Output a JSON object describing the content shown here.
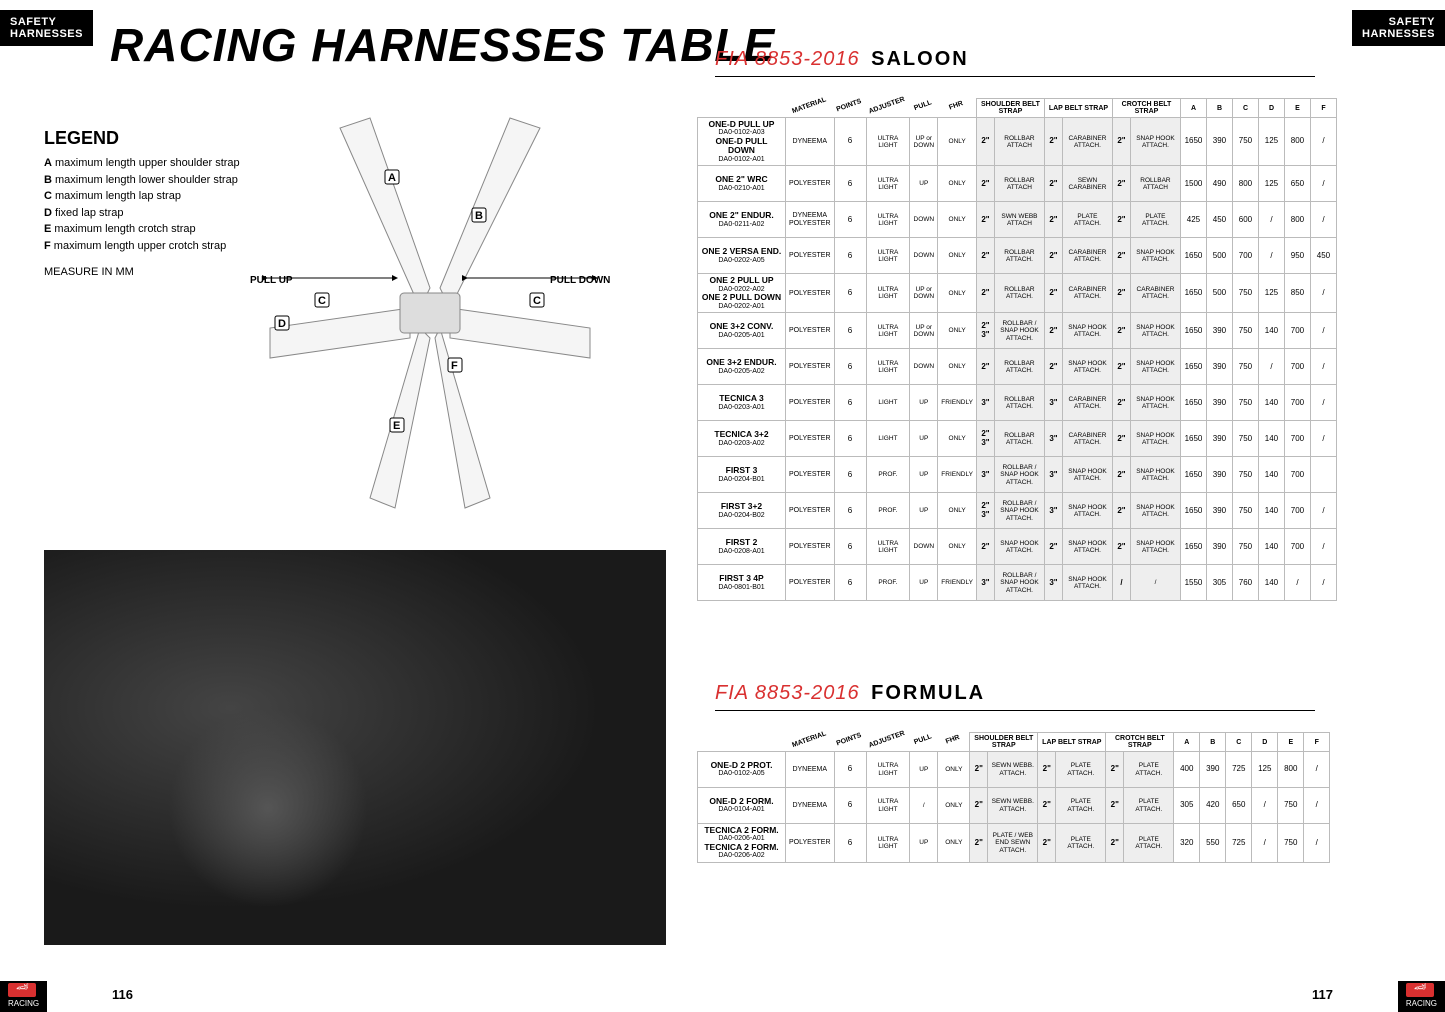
{
  "tabs": {
    "label1": "SAFETY",
    "label2": "HARNESSES"
  },
  "title": "RACING HARNESSES TABLE",
  "legend": {
    "heading": "LEGEND",
    "items": [
      {
        "key": "A",
        "text": "maximum length upper shoulder strap"
      },
      {
        "key": "B",
        "text": "maximum length lower shoulder strap"
      },
      {
        "key": "C",
        "text": "maximum length lap strap"
      },
      {
        "key": "D",
        "text": "fixed lap strap"
      },
      {
        "key": "E",
        "text": "maximum length crotch strap"
      },
      {
        "key": "F",
        "text": "maximum length upper crotch strap"
      }
    ],
    "measure": "MEASURE IN MM"
  },
  "diagram": {
    "labels": {
      "A": "A",
      "B": "B",
      "C": "C",
      "D": "D",
      "E": "E",
      "F": "F"
    },
    "pullup": "PULL UP",
    "pulldown": "PULL DOWN"
  },
  "sections": {
    "saloon": {
      "fia": "FIA 8853-2016",
      "cat": "SALOON"
    },
    "formula": {
      "fia": "FIA 8853-2016",
      "cat": "FORMULA"
    }
  },
  "headers": {
    "material": "MATERIAL",
    "points": "POINTS",
    "adjuster": "ADJUSTER",
    "pull": "PULL",
    "fhr": "FHR",
    "shoulder": "SHOULDER BELT STRAP",
    "lap": "LAP BELT STRAP",
    "crotch": "CROTCH BELT STRAP",
    "a": "A",
    "b": "B",
    "c": "C",
    "d": "D",
    "e": "E",
    "f": "F"
  },
  "saloon_rows": [
    {
      "name": "ONE-D PULL UP",
      "code": "DA0-0102-A03",
      "name2": "ONE-D PULL DOWN",
      "code2": "DA0-0102-A01",
      "mat": "DYNEEMA",
      "pts": "6",
      "adj": "ULTRA LIGHT",
      "pull": "UP or DOWN",
      "fhr": "ONLY",
      "s1": "2\"",
      "s2": "ROLLBAR ATTACH",
      "l1": "2\"",
      "l2": "CARABINER ATTACH.",
      "c1": "2\"",
      "c2": "SNAP HOOK ATTACH.",
      "a": "1650",
      "b": "390",
      "c": "750",
      "d": "125",
      "e": "800",
      "f": "/"
    },
    {
      "name": "ONE 2\" WRC",
      "code": "DA0-0210-A01",
      "mat": "POLYESTER",
      "pts": "6",
      "adj": "ULTRA LIGHT",
      "pull": "UP",
      "fhr": "ONLY",
      "s1": "2\"",
      "s2": "ROLLBAR ATTACH",
      "l1": "2\"",
      "l2": "SEWN CARABINER",
      "c1": "2\"",
      "c2": "ROLLBAR ATTACH",
      "a": "1500",
      "b": "490",
      "c": "800",
      "d": "125",
      "e": "650",
      "f": "/"
    },
    {
      "name": "ONE 2\" ENDUR.",
      "code": "DA0-0211-A02",
      "mat": "DYNEEMA POLYESTER",
      "pts": "6",
      "adj": "ULTRA LIGHT",
      "pull": "DOWN",
      "fhr": "ONLY",
      "s1": "2\"",
      "s2": "SWN WEBB ATTACH",
      "l1": "2\"",
      "l2": "PLATE ATTACH.",
      "c1": "2\"",
      "c2": "PLATE ATTACH.",
      "a": "425",
      "b": "450",
      "c": "600",
      "d": "/",
      "e": "800",
      "f": "/"
    },
    {
      "name": "ONE 2 VERSA END.",
      "code": "DA0-0202-A05",
      "mat": "POLYESTER",
      "pts": "6",
      "adj": "ULTRA LIGHT",
      "pull": "DOWN",
      "fhr": "ONLY",
      "s1": "2\"",
      "s2": "ROLLBAR ATTACH.",
      "l1": "2\"",
      "l2": "CARABINER ATTACH.",
      "c1": "2\"",
      "c2": "SNAP HOOK ATTACH.",
      "a": "1650",
      "b": "500",
      "c": "700",
      "d": "/",
      "e": "950",
      "f": "450"
    },
    {
      "name": "ONE 2 PULL UP",
      "code": "DA0-0202-A02",
      "name2": "ONE 2 PULL DOWN",
      "code2": "DA0-0202-A01",
      "mat": "POLYESTER",
      "pts": "6",
      "adj": "ULTRA LIGHT",
      "pull": "UP or DOWN",
      "fhr": "ONLY",
      "s1": "2\"",
      "s2": "ROLLBAR ATTACH.",
      "l1": "2\"",
      "l2": "CARABINER ATTACH.",
      "c1": "2\"",
      "c2": "CARABINER ATTACH.",
      "a": "1650",
      "b": "500",
      "c": "750",
      "d": "125",
      "e": "850",
      "f": "/"
    },
    {
      "name": "ONE 3+2 CONV.",
      "code": "DA0-0205-A01",
      "mat": "POLYESTER",
      "pts": "6",
      "adj": "ULTRA LIGHT",
      "pull": "UP or DOWN",
      "fhr": "ONLY",
      "s1": "2\" 3\"",
      "s2": "ROLLBAR / SNAP HOOK ATTACH.",
      "l1": "2\"",
      "l2": "SNAP HOOK ATTACH.",
      "c1": "2\"",
      "c2": "SNAP HOOK ATTACH.",
      "a": "1650",
      "b": "390",
      "c": "750",
      "d": "140",
      "e": "700",
      "f": "/"
    },
    {
      "name": "ONE 3+2 ENDUR.",
      "code": "DA0-0205-A02",
      "mat": "POLYESTER",
      "pts": "6",
      "adj": "ULTRA LIGHT",
      "pull": "DOWN",
      "fhr": "ONLY",
      "s1": "2\"",
      "s2": "ROLLBAR ATTACH.",
      "l1": "2\"",
      "l2": "SNAP HOOK ATTACH.",
      "c1": "2\"",
      "c2": "SNAP HOOK ATTACH.",
      "a": "1650",
      "b": "390",
      "c": "750",
      "d": "/",
      "e": "700",
      "f": "/"
    },
    {
      "name": "TECNICA 3",
      "code": "DA0-0203-A01",
      "mat": "POLYESTER",
      "pts": "6",
      "adj": "LIGHT",
      "pull": "UP",
      "fhr": "FRIENDLY",
      "s1": "3\"",
      "s2": "ROLLBAR ATTACH.",
      "l1": "3\"",
      "l2": "CARABINER ATTACH.",
      "c1": "2\"",
      "c2": "SNAP HOOK ATTACH.",
      "a": "1650",
      "b": "390",
      "c": "750",
      "d": "140",
      "e": "700",
      "f": "/"
    },
    {
      "name": "TECNICA 3+2",
      "code": "DA0-0203-A02",
      "mat": "POLYESTER",
      "pts": "6",
      "adj": "LIGHT",
      "pull": "UP",
      "fhr": "ONLY",
      "s1": "2\" 3\"",
      "s2": "ROLLBAR ATTACH.",
      "l1": "3\"",
      "l2": "CARABINER ATTACH.",
      "c1": "2\"",
      "c2": "SNAP HOOK ATTACH.",
      "a": "1650",
      "b": "390",
      "c": "750",
      "d": "140",
      "e": "700",
      "f": "/"
    },
    {
      "name": "FIRST 3",
      "code": "DA0-0204-B01",
      "mat": "POLYESTER",
      "pts": "6",
      "adj": "PROF.",
      "pull": "UP",
      "fhr": "FRIENDLY",
      "s1": "3\"",
      "s2": "ROLLBAR / SNAP HOOK ATTACH.",
      "l1": "3\"",
      "l2": "SNAP HOOK ATTACH.",
      "c1": "2\"",
      "c2": "SNAP HOOK ATTACH.",
      "a": "1650",
      "b": "390",
      "c": "750",
      "d": "140",
      "e": "700",
      "f": ""
    },
    {
      "name": "FIRST 3+2",
      "code": "DA0-0204-B02",
      "mat": "POLYESTER",
      "pts": "6",
      "adj": "PROF.",
      "pull": "UP",
      "fhr": "ONLY",
      "s1": "2\" 3\"",
      "s2": "ROLLBAR / SNAP HOOK ATTACH.",
      "l1": "3\"",
      "l2": "SNAP HOOK ATTACH.",
      "c1": "2\"",
      "c2": "SNAP HOOK ATTACH.",
      "a": "1650",
      "b": "390",
      "c": "750",
      "d": "140",
      "e": "700",
      "f": "/"
    },
    {
      "name": "FIRST 2",
      "code": "DA0-0208-A01",
      "mat": "POLYESTER",
      "pts": "6",
      "adj": "ULTRA LIGHT",
      "pull": "DOWN",
      "fhr": "ONLY",
      "s1": "2\"",
      "s2": "SNAP HOOK ATTACH.",
      "l1": "2\"",
      "l2": "SNAP HOOK ATTACH.",
      "c1": "2\"",
      "c2": "SNAP HOOK ATTACH.",
      "a": "1650",
      "b": "390",
      "c": "750",
      "d": "140",
      "e": "700",
      "f": "/"
    },
    {
      "name": "FIRST 3 4P",
      "code": "DA0-0801-B01",
      "mat": "POLYESTER",
      "pts": "6",
      "adj": "PROF.",
      "pull": "UP",
      "fhr": "FRIENDLY",
      "s1": "3\"",
      "s2": "ROLLBAR / SNAP HOOK ATTACH.",
      "l1": "3\"",
      "l2": "SNAP HOOK ATTACH.",
      "c1": "/",
      "c2": "/",
      "a": "1550",
      "b": "305",
      "c": "760",
      "d": "140",
      "e": "/",
      "f": "/"
    }
  ],
  "formula_rows": [
    {
      "name": "ONE-D 2 PROT.",
      "code": "DA0-0102-A05",
      "mat": "DYNEEMA",
      "pts": "6",
      "adj": "ULTRA LIGHT",
      "pull": "UP",
      "fhr": "ONLY",
      "s1": "2\"",
      "s2": "SEWN WEBB. ATTACH.",
      "l1": "2\"",
      "l2": "PLATE ATTACH.",
      "c1": "2\"",
      "c2": "PLATE ATTACH.",
      "a": "400",
      "b": "390",
      "c": "725",
      "d": "125",
      "e": "800",
      "f": "/"
    },
    {
      "name": "ONE-D 2 FORM.",
      "code": "DA0-0104-A01",
      "mat": "DYNEEMA",
      "pts": "6",
      "adj": "ULTRA LIGHT",
      "pull": "/",
      "fhr": "ONLY",
      "s1": "2\"",
      "s2": "SEWN WEBB. ATTACH.",
      "l1": "2\"",
      "l2": "PLATE ATTACH.",
      "c1": "2\"",
      "c2": "PLATE ATTACH.",
      "a": "305",
      "b": "420",
      "c": "650",
      "d": "/",
      "e": "750",
      "f": "/"
    },
    {
      "name": "TECNICA 2 FORM.",
      "code": "DA0-0206-A01",
      "name2": "TECNICA 2 FORM.",
      "code2": "DA0-0206-A02",
      "mat": "POLYESTER",
      "pts": "6",
      "adj": "ULTRA LIGHT",
      "pull": "UP",
      "fhr": "ONLY",
      "s1": "2\"",
      "s2": "PLATE / WEB END SEWN ATTACH.",
      "l1": "2\"",
      "l2": "PLATE ATTACH.",
      "c1": "2\"",
      "c2": "PLATE ATTACH.",
      "a": "320",
      "b": "550",
      "c": "725",
      "d": "/",
      "e": "750",
      "f": "/"
    }
  ],
  "footer": {
    "racing": "RACING",
    "page_left": "116",
    "page_right": "117"
  },
  "colors": {
    "red": "#d93030",
    "black": "#000000",
    "grey": "#eeeeee"
  }
}
